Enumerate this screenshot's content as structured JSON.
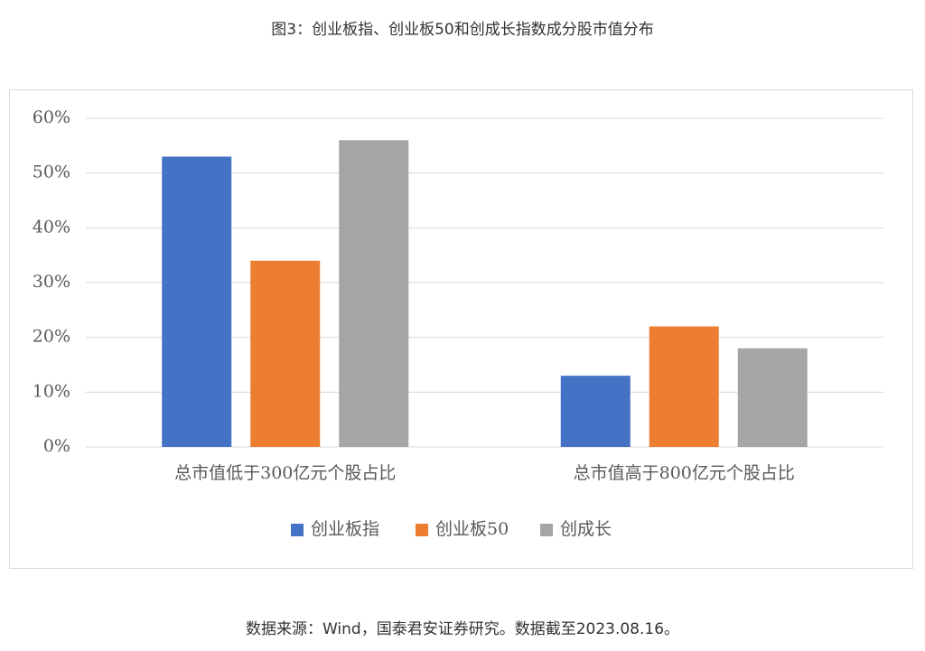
{
  "title": "图3：创业板指、创业板50和创成长指数成分股市值分布",
  "source": "数据来源：Wind，国泰君安证券研究。数据截至2023.08.16。",
  "chart_data": {
    "type": "bar",
    "categories": [
      "总市值低于300亿元个股占比",
      "总市值高于800亿元个股占比"
    ],
    "series": [
      {
        "name": "创业板指",
        "color": "#4472c4",
        "values": [
          53,
          13
        ]
      },
      {
        "name": "创业板50",
        "color": "#ed7d31",
        "values": [
          34,
          22
        ]
      },
      {
        "name": "创成长",
        "color": "#a5a5a5",
        "values": [
          56,
          18
        ]
      }
    ],
    "ylim": [
      0,
      60
    ],
    "yticks": [
      {
        "value": 0,
        "label": "0%"
      },
      {
        "value": 10,
        "label": "10%"
      },
      {
        "value": 20,
        "label": "20%"
      },
      {
        "value": 30,
        "label": "30%"
      },
      {
        "value": 40,
        "label": "40%"
      },
      {
        "value": 50,
        "label": "50%"
      },
      {
        "value": 60,
        "label": "60%"
      }
    ],
    "grid": true,
    "legend": "bottom"
  }
}
